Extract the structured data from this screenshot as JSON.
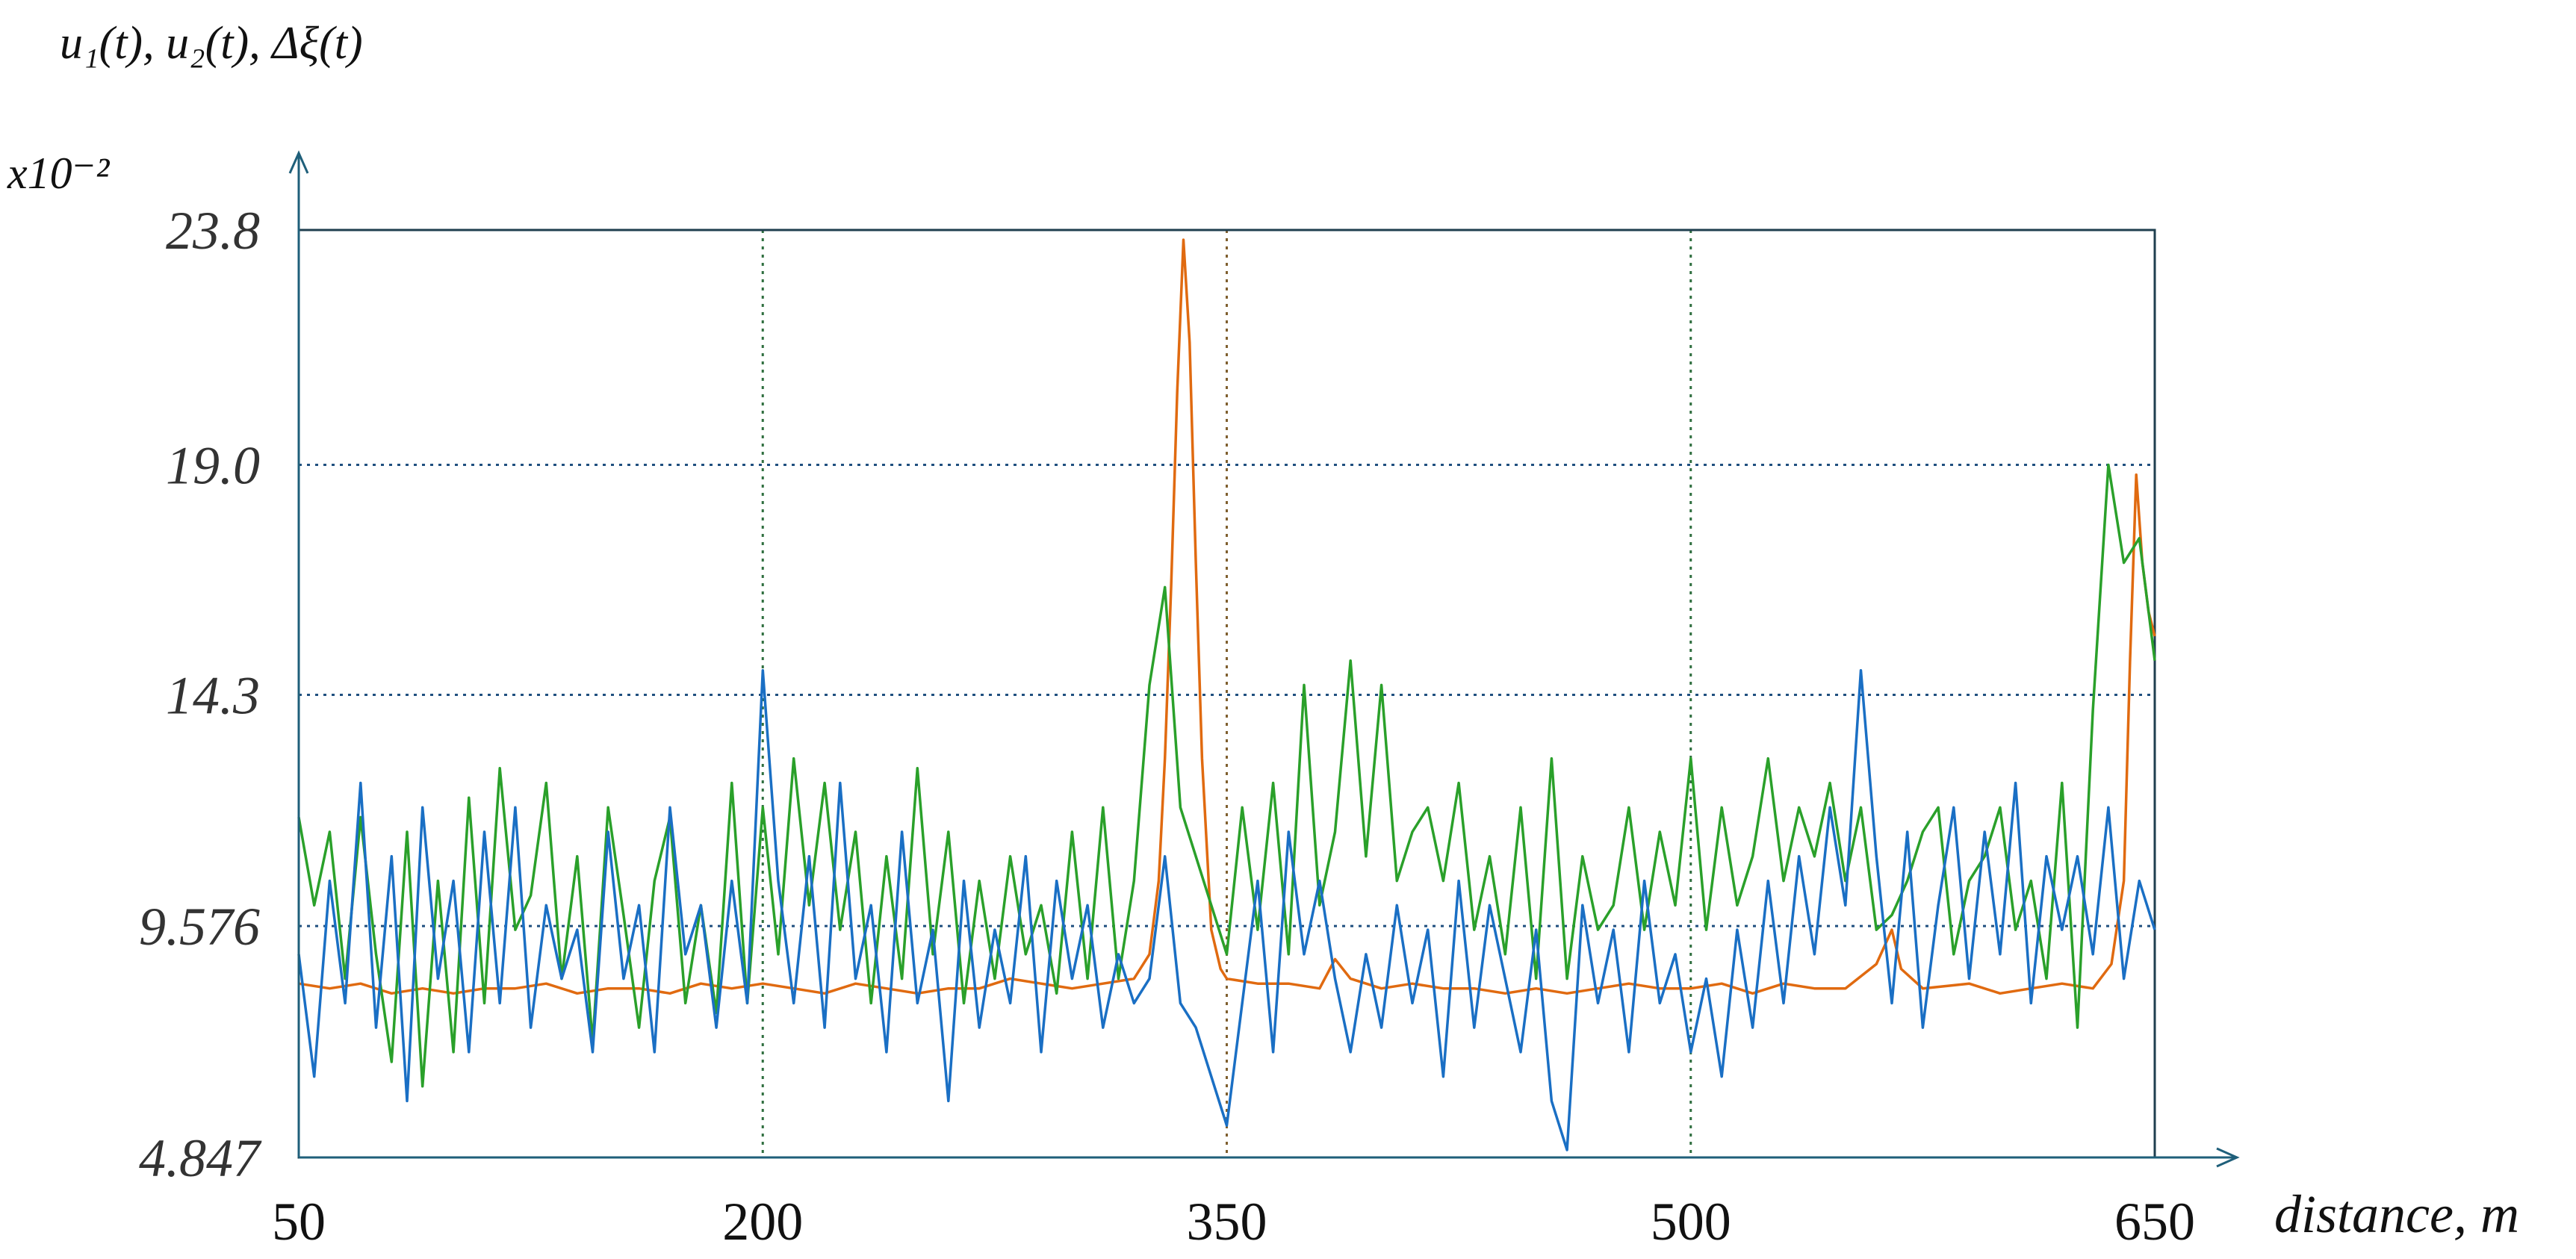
{
  "chart_data": {
    "type": "line",
    "title": "u₁(t), u₂(t), Δξ(t)",
    "scale_label": "x10⁻²",
    "xlabel": "distance, m",
    "ylabel": "",
    "xlim": [
      50,
      650
    ],
    "ylim": [
      4.847,
      23.8
    ],
    "x_ticks": [
      "50",
      "200",
      "350",
      "500",
      "650"
    ],
    "x_tick_values": [
      50,
      200,
      350,
      500,
      650
    ],
    "y_ticks": [
      "4.847",
      "9.576",
      "14.3",
      "19.0",
      "23.8"
    ],
    "y_tick_values": [
      4.847,
      9.576,
      14.3,
      19.0,
      23.8
    ],
    "grid": true,
    "legend": "none",
    "colors": {
      "axis": "#1f5f7a",
      "frame": "#1f3f4f",
      "grid_h": "#1f4f7f",
      "grid_v_green": "#2f6f3f",
      "grid_v_brown": "#7f5f2f"
    },
    "series": [
      {
        "color": "#e06a10",
        "x": [
          50,
          60,
          70,
          80,
          90,
          100,
          110,
          120,
          130,
          140,
          150,
          160,
          170,
          180,
          190,
          200,
          210,
          220,
          230,
          240,
          250,
          260,
          270,
          280,
          290,
          300,
          310,
          320,
          325,
          328,
          330,
          332,
          334,
          336,
          338,
          340,
          342,
          345,
          348,
          350,
          360,
          370,
          380,
          385,
          390,
          400,
          410,
          420,
          430,
          440,
          450,
          460,
          470,
          480,
          490,
          500,
          510,
          520,
          530,
          540,
          550,
          560,
          565,
          568,
          575,
          590,
          600,
          610,
          620,
          630,
          636,
          640,
          642,
          644,
          646,
          648,
          650
        ],
        "y": [
          8.4,
          8.3,
          8.4,
          8.2,
          8.3,
          8.2,
          8.3,
          8.3,
          8.4,
          8.2,
          8.3,
          8.3,
          8.2,
          8.4,
          8.3,
          8.4,
          8.3,
          8.2,
          8.4,
          8.3,
          8.2,
          8.3,
          8.3,
          8.5,
          8.4,
          8.3,
          8.4,
          8.5,
          9.0,
          10.5,
          13.0,
          16.5,
          20.5,
          23.6,
          21.5,
          17.0,
          13.0,
          9.5,
          8.7,
          8.5,
          8.4,
          8.4,
          8.3,
          8.9,
          8.5,
          8.3,
          8.4,
          8.3,
          8.3,
          8.2,
          8.3,
          8.2,
          8.3,
          8.4,
          8.3,
          8.3,
          8.4,
          8.2,
          8.4,
          8.3,
          8.3,
          8.8,
          9.5,
          8.7,
          8.3,
          8.4,
          8.2,
          8.3,
          8.4,
          8.3,
          8.8,
          10.5,
          15.0,
          18.8,
          17.0,
          16.0,
          15.5
        ]
      },
      {
        "color": "#2aa02a",
        "x": [
          50,
          55,
          60,
          65,
          70,
          75,
          80,
          85,
          90,
          95,
          100,
          105,
          110,
          115,
          120,
          125,
          130,
          135,
          140,
          145,
          150,
          155,
          160,
          165,
          170,
          175,
          180,
          185,
          190,
          195,
          200,
          205,
          210,
          215,
          220,
          225,
          230,
          235,
          240,
          245,
          250,
          255,
          260,
          265,
          270,
          275,
          280,
          285,
          290,
          295,
          300,
          305,
          310,
          315,
          320,
          325,
          330,
          335,
          340,
          345,
          350,
          355,
          360,
          365,
          370,
          375,
          380,
          385,
          390,
          395,
          400,
          405,
          410,
          415,
          420,
          425,
          430,
          435,
          440,
          445,
          450,
          455,
          460,
          465,
          470,
          475,
          480,
          485,
          490,
          495,
          500,
          505,
          510,
          515,
          520,
          525,
          530,
          535,
          540,
          545,
          550,
          555,
          560,
          565,
          570,
          575,
          580,
          585,
          590,
          595,
          600,
          605,
          610,
          615,
          620,
          625,
          630,
          635,
          640,
          645,
          650
        ],
        "y": [
          11.8,
          10.0,
          11.5,
          8.5,
          11.8,
          9.0,
          6.8,
          11.5,
          6.3,
          10.5,
          7.0,
          12.2,
          8.0,
          12.8,
          9.5,
          10.2,
          12.5,
          8.5,
          11.0,
          7.2,
          12.0,
          9.8,
          7.5,
          10.5,
          11.8,
          8.0,
          10.0,
          7.8,
          12.5,
          8.0,
          12.0,
          9.0,
          13.0,
          10.0,
          12.5,
          9.5,
          11.5,
          8.0,
          11.0,
          8.5,
          12.8,
          9.0,
          11.5,
          8.0,
          10.5,
          8.5,
          11.0,
          9.0,
          10.0,
          8.2,
          11.5,
          8.5,
          12.0,
          8.5,
          10.5,
          14.5,
          16.5,
          12.0,
          11.0,
          10.0,
          9.0,
          12.0,
          9.5,
          12.5,
          9.0,
          14.5,
          10.0,
          11.5,
          15.0,
          11.0,
          14.5,
          10.5,
          11.5,
          12.0,
          10.5,
          12.5,
          9.5,
          11.0,
          9.0,
          12.0,
          8.5,
          13.0,
          8.5,
          11.0,
          9.5,
          10.0,
          12.0,
          9.5,
          11.5,
          10.0,
          13.0,
          9.5,
          12.0,
          10.0,
          11.0,
          13.0,
          10.5,
          12.0,
          11.0,
          12.5,
          10.5,
          12.0,
          9.5,
          9.8,
          10.5,
          11.5,
          12.0,
          9.0,
          10.5,
          11.0,
          12.0,
          9.5,
          10.5,
          8.5,
          12.5,
          7.5,
          14.0,
          19.0,
          17.0,
          17.5,
          15.0
        ]
      },
      {
        "color": "#1a6fc4",
        "x": [
          50,
          55,
          60,
          65,
          70,
          75,
          80,
          85,
          90,
          95,
          100,
          105,
          110,
          115,
          120,
          125,
          130,
          135,
          140,
          145,
          150,
          155,
          160,
          165,
          170,
          175,
          180,
          185,
          190,
          195,
          200,
          205,
          210,
          215,
          220,
          225,
          230,
          235,
          240,
          245,
          250,
          255,
          260,
          265,
          270,
          275,
          280,
          285,
          290,
          295,
          300,
          305,
          310,
          315,
          320,
          325,
          330,
          335,
          340,
          345,
          350,
          355,
          360,
          365,
          370,
          375,
          380,
          385,
          390,
          395,
          400,
          405,
          410,
          415,
          420,
          425,
          430,
          435,
          440,
          445,
          450,
          455,
          460,
          465,
          470,
          475,
          480,
          485,
          490,
          495,
          500,
          505,
          510,
          515,
          520,
          525,
          530,
          535,
          540,
          545,
          550,
          555,
          560,
          565,
          570,
          575,
          580,
          585,
          590,
          595,
          600,
          605,
          610,
          615,
          620,
          625,
          630,
          635,
          640,
          645,
          650
        ],
        "y": [
          9.0,
          6.5,
          10.5,
          8.0,
          12.5,
          7.5,
          11.0,
          6.0,
          12.0,
          8.5,
          10.5,
          7.0,
          11.5,
          8.0,
          12.0,
          7.5,
          10.0,
          8.5,
          9.5,
          7.0,
          11.5,
          8.5,
          10.0,
          7.0,
          12.0,
          9.0,
          10.0,
          7.5,
          10.5,
          8.0,
          14.8,
          10.5,
          8.0,
          11.0,
          7.5,
          12.5,
          8.5,
          10.0,
          7.0,
          11.5,
          8.0,
          9.5,
          6.0,
          10.5,
          7.5,
          9.5,
          8.0,
          11.0,
          7.0,
          10.5,
          8.5,
          10.0,
          7.5,
          9.0,
          8.0,
          8.5,
          11.0,
          8.0,
          7.5,
          6.5,
          5.5,
          8.0,
          10.5,
          7.0,
          11.5,
          9.0,
          10.5,
          8.5,
          7.0,
          9.0,
          7.5,
          10.0,
          8.0,
          9.5,
          6.5,
          10.5,
          7.5,
          10.0,
          8.5,
          7.0,
          9.5,
          6.0,
          5.0,
          10.0,
          8.0,
          9.5,
          7.0,
          10.5,
          8.0,
          9.0,
          7.0,
          8.5,
          6.5,
          9.5,
          7.5,
          10.5,
          8.0,
          11.0,
          9.0,
          12.0,
          10.0,
          14.8,
          11.0,
          8.0,
          11.5,
          7.5,
          10.0,
          12.0,
          8.5,
          11.5,
          9.0,
          12.5,
          8.0,
          11.0,
          9.5,
          11.0,
          9.0,
          12.0,
          8.5,
          10.5,
          9.5
        ]
      }
    ]
  }
}
